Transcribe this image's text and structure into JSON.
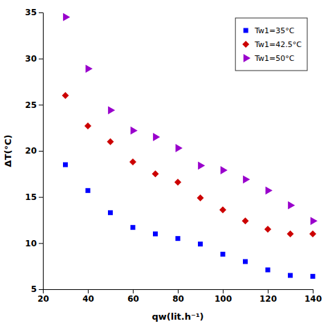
{
  "chart_data": {
    "type": "scatter",
    "xlabel": "qw(lit.h⁻¹)",
    "ylabel": "ΔT(°C)",
    "x": [
      30,
      40,
      50,
      60,
      70,
      80,
      90,
      100,
      110,
      120,
      130,
      140
    ],
    "series": [
      {
        "name": "Tw1=35°C",
        "color": "#0000FF",
        "marker": "square",
        "values": [
          18.5,
          15.7,
          13.3,
          11.7,
          11.0,
          10.5,
          9.9,
          8.8,
          8.0,
          7.1,
          6.5,
          6.4
        ]
      },
      {
        "name": "Tw1=42.5°C",
        "color": "#CC0000",
        "marker": "diamond",
        "values": [
          26.0,
          22.7,
          21.0,
          18.8,
          17.5,
          16.6,
          14.9,
          13.6,
          12.4,
          11.5,
          11.0,
          11.0
        ]
      },
      {
        "name": "Tw1=50°C",
        "color": "#9900CC",
        "marker": "triangle-right",
        "values": [
          34.5,
          28.9,
          24.4,
          22.2,
          21.5,
          20.3,
          18.4,
          17.9,
          16.9,
          15.7,
          14.1,
          12.4
        ]
      }
    ],
    "xlim": [
      20,
      140
    ],
    "ylim": [
      5,
      35
    ],
    "xticks": [
      20,
      40,
      60,
      80,
      100,
      120,
      140
    ],
    "yticks": [
      5,
      10,
      15,
      20,
      25,
      30,
      35
    ],
    "grid": false,
    "legend": "upper right"
  }
}
